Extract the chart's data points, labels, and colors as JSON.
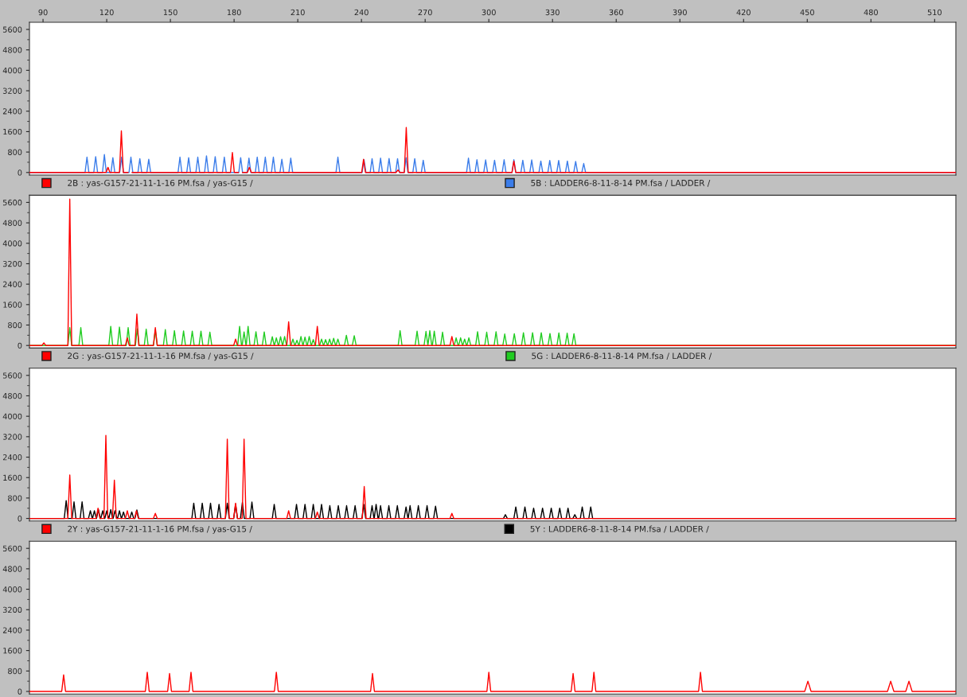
{
  "chart_data": [
    {
      "type": "line",
      "xlim": [
        83.6,
        520
      ],
      "xticks": [
        90,
        120,
        150,
        180,
        210,
        240,
        270,
        300,
        330,
        360,
        390,
        420,
        450,
        480,
        510
      ],
      "ylim": [
        -100,
        5880
      ],
      "yticks": [
        0,
        800,
        1600,
        2400,
        3200,
        4000,
        4800,
        5600
      ],
      "legend": "bottom",
      "series": [
        {
          "name": "2B : yas-G157-21-11-1-16 PM.fsa / yas-G15 /",
          "color": "#ff0000",
          "x": [
            83.6,
            119.7,
            120.6,
            121.5,
            126,
            126.9,
            127.8,
            130.1,
            131,
            131.9,
            178.3,
            179.2,
            180.1,
            182.1,
            183,
            183.9,
            186.3,
            187.2,
            188.1,
            240.1,
            241,
            241.9,
            256.3,
            257.2,
            258.1,
            260.2,
            261.1,
            262,
            310.9,
            311.8,
            312.7,
            520
          ],
          "values": [
            0,
            0,
            200,
            0,
            0,
            1630,
            0,
            0,
            null,
            0,
            0,
            780,
            0,
            0,
            null,
            0,
            0,
            200,
            0,
            0,
            520,
            0,
            0,
            100,
            0,
            0,
            1760,
            0,
            0,
            450,
            0,
            0
          ]
        },
        {
          "name": "5B : LADDER6-8-11-8-14 PM.fsa / LADDER /",
          "color": "#3b7dea",
          "x": [
            83.6,
            109.8,
            110.7,
            111.6,
            113.9,
            114.8,
            115.7,
            118,
            118.9,
            119.8,
            122,
            122.9,
            123.8,
            126.1,
            127,
            127.9,
            130.5,
            131.4,
            132.3,
            134.7,
            135.6,
            136.5,
            138.9,
            139.8,
            140.7,
            153.6,
            154.5,
            155.4,
            157.7,
            158.6,
            159.5,
            162,
            162.9,
            163.8,
            166.1,
            167,
            167.9,
            170.2,
            171.1,
            172,
            174.5,
            175.4,
            176.3,
            182.2,
            183.1,
            184,
            186.1,
            187,
            187.9,
            190,
            190.9,
            191.8,
            193.8,
            194.7,
            195.6,
            197.6,
            198.5,
            199.4,
            201.6,
            202.5,
            203.4,
            205.8,
            206.7,
            207.6,
            228,
            228.9,
            229.8,
            240.3,
            241.2,
            242.1,
            244.1,
            245,
            245.9,
            248.1,
            249,
            249.9,
            252.1,
            253,
            253.9,
            256.1,
            257,
            257.9,
            260.1,
            261,
            261.9,
            264.2,
            265.1,
            266,
            268.2,
            269.1,
            270,
            289.5,
            290.4,
            291.3,
            293.5,
            294.4,
            295.3,
            297.6,
            298.5,
            299.4,
            301.8,
            302.7,
            303.6,
            306.3,
            307.2,
            308.1,
            310.9,
            311.8,
            312.7,
            315.1,
            316,
            316.9,
            319.3,
            320.2,
            321.1,
            323.6,
            324.5,
            325.4,
            327.8,
            328.7,
            329.6,
            332,
            332.9,
            333.8,
            336.1,
            337,
            337.9,
            340,
            340.9,
            341.8,
            343.8,
            344.7,
            345.6,
            520
          ],
          "values": [
            0,
            0,
            600,
            0,
            0,
            620,
            0,
            0,
            700,
            0,
            0,
            580,
            0,
            0,
            600,
            0,
            0,
            600,
            0,
            0,
            540,
            0,
            0,
            520,
            0,
            0,
            600,
            0,
            0,
            580,
            0,
            0,
            600,
            0,
            0,
            650,
            0,
            0,
            620,
            0,
            0,
            600,
            0,
            0,
            580,
            0,
            0,
            560,
            0,
            0,
            600,
            0,
            0,
            600,
            0,
            0,
            600,
            0,
            0,
            520,
            0,
            0,
            560,
            0,
            0,
            600,
            0,
            0,
            500,
            0,
            0,
            540,
            0,
            0,
            560,
            0,
            0,
            550,
            0,
            0,
            540,
            0,
            0,
            580,
            0,
            0,
            540,
            0,
            0,
            480,
            0,
            0,
            560,
            0,
            0,
            500,
            0,
            0,
            490,
            0,
            0,
            480,
            0,
            0,
            500,
            0,
            0,
            500,
            0,
            0,
            480,
            0,
            0,
            490,
            0,
            0,
            450,
            0,
            0,
            470,
            0,
            0,
            470,
            0,
            0,
            450,
            0,
            0,
            430,
            0,
            0,
            350,
            0,
            0
          ]
        }
      ]
    },
    {
      "type": "line",
      "xlim": [
        83.6,
        520
      ],
      "ylim": [
        -100,
        5880
      ],
      "yticks": [
        0,
        800,
        1600,
        2400,
        3200,
        4000,
        4800,
        5600
      ],
      "tick_labels": "y",
      "legend": "bottom",
      "series": [
        {
          "name": "2G : yas-G157-21-11-1-16 PM.fsa / yas-G15 /",
          "color": "#ff0000",
          "x": [
            83.6,
            89.5,
            90.4,
            91.3,
            101.7,
            102.6,
            103.5,
            128.8,
            129.7,
            130.6,
            133.3,
            134.2,
            135.1,
            142,
            142.9,
            143.8,
            179.8,
            180.7,
            181.6,
            204.8,
            205.7,
            206.6,
            218.3,
            219.2,
            220.1,
            281.7,
            282.6,
            283.5,
            520
          ],
          "values": [
            0,
            0,
            100,
            0,
            0,
            5730,
            0,
            0,
            300,
            0,
            0,
            1230,
            0,
            0,
            700,
            0,
            0,
            250,
            0,
            0,
            930,
            0,
            0,
            750,
            0,
            0,
            350,
            0,
            0
          ]
        },
        {
          "name": "5G : LADDER6-8-11-8-14 PM.fsa / LADDER /",
          "color": "#22cc22",
          "x": [
            83.6,
            101.7,
            102.6,
            103.5,
            106.9,
            107.8,
            108.7,
            121,
            121.9,
            122.8,
            125.1,
            126,
            126.9,
            129.2,
            130.1,
            131,
            133.5,
            134.4,
            135.3,
            137.7,
            138.6,
            139.5,
            142,
            142.9,
            143.8,
            146.7,
            147.6,
            148.5,
            151,
            151.9,
            152.8,
            155.3,
            156.2,
            157.1,
            159.4,
            160.3,
            161.2,
            163.5,
            164.4,
            165.3,
            167.7,
            168.6,
            169.5,
            181.7,
            182.6,
            183.5,
            183.8,
            184.7,
            185.6,
            185.7,
            186.6,
            187.5,
            189.4,
            190.3,
            191.2,
            193.3,
            194.2,
            195.1,
            197.1,
            198,
            198.9,
            199,
            199.9,
            200.8,
            201,
            201.9,
            202.8,
            202.9,
            203.8,
            204.7,
            206.8,
            207.7,
            208.6,
            208.7,
            209.6,
            210.5,
            210.6,
            211.5,
            212.4,
            212.5,
            213.4,
            214.3,
            214.5,
            215.4,
            216.3,
            216.4,
            217.3,
            218.2,
            220.3,
            221.2,
            222.1,
            222.2,
            223.1,
            224,
            224.1,
            225,
            225.9,
            226,
            226.9,
            227.8,
            228,
            228.9,
            229.8,
            232,
            232.9,
            233.8,
            235.7,
            236.6,
            237.5,
            257.3,
            258.2,
            259.1,
            265.3,
            266.2,
            267.1,
            269.5,
            270.4,
            271.3,
            271.3,
            272.2,
            273.1,
            273.4,
            274.3,
            275.2,
            277.3,
            278.2,
            279.1,
            283.7,
            284.6,
            285.5,
            285.8,
            286.7,
            287.6,
            287.7,
            288.6,
            289.5,
            289.7,
            290.6,
            291.5,
            293.8,
            294.7,
            295.6,
            298.1,
            299,
            299.9,
            302.5,
            303.4,
            304.3,
            306.6,
            307.5,
            308.4,
            311.1,
            312,
            312.9,
            315.4,
            316.3,
            317.2,
            319.7,
            320.6,
            321.5,
            323.8,
            324.7,
            325.6,
            327.9,
            328.8,
            329.7,
            332.1,
            333,
            333.9,
            336,
            336.9,
            337.8,
            339.2,
            340.1,
            341,
            520
          ],
          "values": [
            0,
            0,
            700,
            0,
            0,
            700,
            0,
            0,
            750,
            0,
            0,
            720,
            0,
            0,
            700,
            0,
            0,
            650,
            0,
            0,
            640,
            0,
            0,
            600,
            0,
            0,
            620,
            0,
            0,
            580,
            0,
            0,
            570,
            0,
            0,
            560,
            0,
            0,
            560,
            0,
            0,
            520,
            0,
            0,
            750,
            0,
            0,
            530,
            0,
            0,
            750,
            0,
            0,
            540,
            0,
            0,
            530,
            0,
            0,
            340,
            0,
            0,
            300,
            0,
            0,
            340,
            0,
            0,
            350,
            0,
            0,
            250,
            0,
            0,
            200,
            0,
            0,
            350,
            0,
            0,
            330,
            0,
            0,
            350,
            0,
            0,
            230,
            0,
            0,
            250,
            0,
            0,
            230,
            0,
            0,
            250,
            0,
            0,
            280,
            0,
            0,
            250,
            0,
            0,
            400,
            0,
            0,
            380,
            0,
            0,
            580,
            0,
            0,
            560,
            0,
            0,
            550,
            0,
            0,
            580,
            0,
            0,
            560,
            0,
            0,
            520,
            0,
            0,
            300,
            0,
            0,
            300,
            0,
            0,
            250,
            0,
            0,
            300,
            0,
            0,
            540,
            0,
            0,
            520,
            0,
            0,
            540,
            0,
            0,
            450,
            0,
            0,
            460,
            0,
            0,
            500,
            0,
            0,
            500,
            0,
            0,
            500,
            0,
            0,
            470,
            0,
            0,
            490,
            0,
            0,
            480,
            0,
            0,
            460,
            0,
            0
          ]
        }
      ]
    },
    {
      "type": "line",
      "xlim": [
        83.6,
        520
      ],
      "ylim": [
        -100,
        5880
      ],
      "yticks": [
        0,
        800,
        1600,
        2400,
        3200,
        4000,
        4800,
        5600
      ],
      "tick_labels": "y",
      "legend": "bottom",
      "series": [
        {
          "name": "2Y : yas-G157-21-11-1-16 PM.fsa / yas-G15 /",
          "color": "#ff0000",
          "x": [
            83.6,
            101.7,
            102.6,
            103.5,
            115,
            115.9,
            116.8,
            118.7,
            119.6,
            120.5,
            122.7,
            123.6,
            124.5,
            128.8,
            129.7,
            130.6,
            133.1,
            134,
            134.9,
            142,
            142.9,
            143.8,
            175.9,
            176.8,
            177.7,
            179.8,
            180.7,
            181.6,
            183.8,
            184.7,
            185.6,
            204.8,
            205.7,
            206.6,
            218.3,
            219.2,
            220.1,
            240.4,
            241.3,
            242.2,
            281.7,
            282.6,
            283.5,
            520
          ],
          "values": [
            0,
            0,
            1700,
            0,
            0,
            400,
            0,
            0,
            3250,
            0,
            0,
            1500,
            0,
            0,
            300,
            0,
            0,
            300,
            0,
            0,
            200,
            0,
            0,
            3100,
            0,
            0,
            600,
            0,
            0,
            3100,
            0,
            0,
            300,
            0,
            0,
            250,
            0,
            0,
            1250,
            0,
            0,
            200,
            0,
            0
          ]
        },
        {
          "name": "5Y : LADDER6-8-11-8-14 PM.fsa / LADDER /",
          "color": "#000000",
          "x": [
            83.6,
            100,
            100.9,
            101.8,
            103.7,
            104.6,
            105.5,
            107.5,
            108.4,
            109.3,
            111.4,
            112.3,
            113.2,
            113.3,
            114.2,
            115.1,
            115.2,
            116.1,
            117,
            117.2,
            118.1,
            119,
            119.1,
            120,
            120.9,
            121,
            121.9,
            122.8,
            123,
            123.9,
            124.8,
            125.1,
            126,
            126.9,
            127,
            127.9,
            128.8,
            130.9,
            131.8,
            132.7,
            133.3,
            134.2,
            135.1,
            160.1,
            161,
            161.9,
            164.1,
            165,
            165.9,
            168,
            168.9,
            169.8,
            172,
            172.9,
            173.8,
            175.9,
            176.8,
            177.7,
            179.8,
            180.7,
            181.6,
            183,
            183.9,
            184.8,
            187.5,
            188.4,
            189.3,
            198,
            198.9,
            199.8,
            208.5,
            209.4,
            210.3,
            212.5,
            213.4,
            214.3,
            216.4,
            217.3,
            218.2,
            220.3,
            221.2,
            222.1,
            224.2,
            225.1,
            226,
            228.2,
            229.1,
            230,
            232.1,
            233,
            233.9,
            236.1,
            237,
            237.9,
            240.2,
            241.1,
            242,
            244.1,
            245,
            245.9,
            246,
            246.9,
            247.8,
            248.1,
            249,
            249.9,
            252,
            252.9,
            253.8,
            256,
            256.9,
            257.8,
            260.1,
            261,
            261.9,
            262,
            262.9,
            263.8,
            265.9,
            266.8,
            267.7,
            270,
            270.9,
            271.8,
            274,
            274.9,
            275.8,
            306.9,
            307.8,
            308.7,
            311.8,
            312.7,
            313.6,
            316.1,
            317,
            317.9,
            320.2,
            321.1,
            322,
            324.4,
            325.3,
            326.2,
            328.5,
            329.4,
            330.3,
            332.5,
            333.4,
            334.3,
            336.4,
            337.3,
            338.2,
            339.6,
            340.5,
            341.4,
            343.1,
            344,
            344.9,
            347.1,
            348,
            348.9,
            520
          ],
          "values": [
            0,
            0,
            700,
            0,
            0,
            650,
            0,
            0,
            650,
            0,
            0,
            300,
            0,
            0,
            300,
            0,
            0,
            350,
            0,
            0,
            300,
            0,
            0,
            300,
            0,
            0,
            350,
            0,
            0,
            300,
            0,
            0,
            300,
            0,
            0,
            250,
            0,
            0,
            250,
            0,
            0,
            330,
            0,
            0,
            600,
            0,
            0,
            600,
            0,
            0,
            600,
            0,
            0,
            550,
            0,
            0,
            600,
            0,
            0,
            550,
            0,
            0,
            620,
            0,
            0,
            640,
            0,
            0,
            550,
            0,
            0,
            550,
            0,
            0,
            550,
            0,
            0,
            550,
            0,
            0,
            550,
            0,
            0,
            500,
            0,
            0,
            500,
            0,
            0,
            500,
            0,
            0,
            500,
            0,
            0,
            550,
            0,
            0,
            500,
            0,
            0,
            550,
            0,
            0,
            500,
            0,
            0,
            500,
            0,
            0,
            500,
            0,
            0,
            450,
            0,
            0,
            500,
            0,
            0,
            500,
            0,
            0,
            500,
            0,
            0,
            480,
            0,
            0,
            150,
            0,
            0,
            450,
            0,
            0,
            450,
            0,
            0,
            400,
            0,
            0,
            400,
            0,
            0,
            400,
            0,
            0,
            400,
            0,
            0,
            400,
            0,
            0,
            150,
            0,
            0,
            450,
            0,
            0,
            450,
            0,
            0
          ]
        }
      ]
    },
    {
      "type": "line",
      "xlim": [
        83.6,
        520
      ],
      "ylim": [
        -100,
        5880
      ],
      "yticks": [
        0,
        800,
        1600,
        2400,
        3200,
        4000,
        4800,
        5600
      ],
      "tick_labels": "y",
      "series": [
        {
          "color": "#ff0000",
          "x": [
            83.6,
            98.8,
            99.7,
            100.6,
            138.2,
            139.1,
            140,
            148.7,
            149.6,
            150.5,
            158.8,
            159.7,
            160.6,
            199,
            199.9,
            200.8,
            244.3,
            245.2,
            246.1,
            299.1,
            300,
            300.9,
            338.8,
            339.7,
            340.6,
            348.6,
            349.5,
            350.4,
            398.8,
            399.7,
            400.6,
            448.8,
            450.3,
            451.8,
            487.8,
            489.3,
            490.8,
            496.4,
            497.9,
            499.4,
            520
          ],
          "values": [
            0,
            0,
            650,
            0,
            0,
            750,
            0,
            0,
            700,
            0,
            0,
            750,
            0,
            0,
            750,
            0,
            0,
            700,
            0,
            0,
            750,
            0,
            0,
            700,
            0,
            0,
            750,
            0,
            0,
            750,
            0,
            0,
            400,
            0,
            0,
            400,
            0,
            0,
            400,
            0,
            0
          ]
        }
      ]
    }
  ]
}
